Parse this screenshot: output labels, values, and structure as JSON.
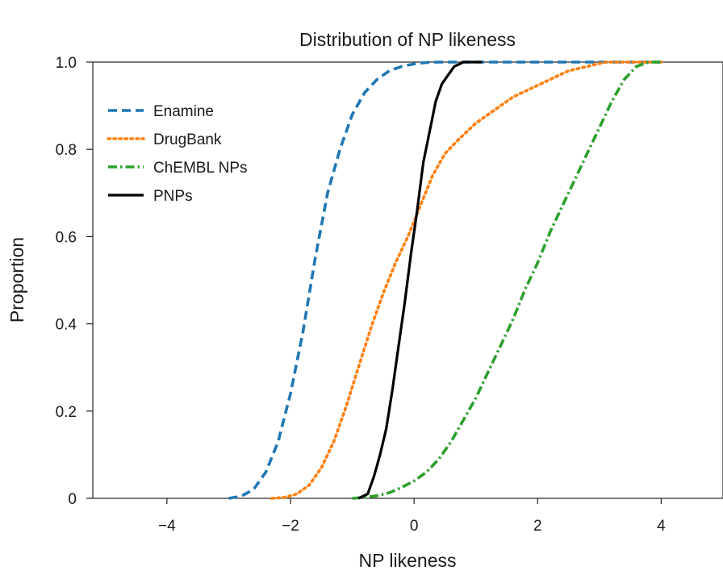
{
  "chart_data": {
    "type": "line",
    "title": "Distribution of NP likeness",
    "xlabel": "NP likeness",
    "ylabel": "Proportion",
    "xlim": [
      -5.2,
      5.0
    ],
    "ylim": [
      0,
      1.0
    ],
    "x_ticks": [
      -4,
      -2,
      0,
      2,
      4
    ],
    "x_tick_labels": [
      "−4",
      "−2",
      "0",
      "2",
      "4"
    ],
    "y_ticks": [
      0,
      0.2,
      0.4,
      0.6,
      0.8,
      1.0
    ],
    "y_tick_labels": [
      "0",
      "0.2",
      "0.4",
      "0.6",
      "0.8",
      "1.0"
    ],
    "grid": false,
    "legend_position": "top-left",
    "series": [
      {
        "name": "Enamine",
        "color": "#1f77b4",
        "style": "dashed",
        "x": [
          -3.0,
          -2.8,
          -2.6,
          -2.4,
          -2.2,
          -2.0,
          -1.8,
          -1.6,
          -1.4,
          -1.2,
          -1.0,
          -0.8,
          -0.6,
          -0.4,
          -0.2,
          0.0,
          0.2,
          0.4,
          0.6,
          4.0
        ],
        "y": [
          0.0,
          0.005,
          0.02,
          0.06,
          0.13,
          0.24,
          0.38,
          0.55,
          0.7,
          0.8,
          0.88,
          0.93,
          0.96,
          0.98,
          0.99,
          0.996,
          0.999,
          1.0,
          1.0,
          1.0
        ]
      },
      {
        "name": "DrugBank",
        "color": "#ff7f0e",
        "style": "dotted",
        "x": [
          -2.3,
          -2.1,
          -1.9,
          -1.7,
          -1.5,
          -1.3,
          -1.1,
          -0.9,
          -0.7,
          -0.5,
          -0.3,
          -0.1,
          0.1,
          0.3,
          0.5,
          0.7,
          1.0,
          1.3,
          1.6,
          1.9,
          2.2,
          2.5,
          2.8,
          3.1,
          3.5,
          4.0
        ],
        "y": [
          0.0,
          0.002,
          0.01,
          0.03,
          0.07,
          0.13,
          0.21,
          0.3,
          0.39,
          0.47,
          0.54,
          0.6,
          0.67,
          0.74,
          0.79,
          0.82,
          0.86,
          0.89,
          0.92,
          0.94,
          0.96,
          0.98,
          0.99,
          1.0,
          1.0,
          1.0
        ]
      },
      {
        "name": "ChEMBL NPs",
        "color": "#2ca02c",
        "style": "dashdot",
        "x": [
          -1.0,
          -0.8,
          -0.6,
          -0.4,
          -0.2,
          0.0,
          0.2,
          0.4,
          0.6,
          0.8,
          1.0,
          1.2,
          1.4,
          1.6,
          1.8,
          2.0,
          2.2,
          2.4,
          2.6,
          2.8,
          3.0,
          3.2,
          3.4,
          3.6,
          3.8,
          4.0
        ],
        "y": [
          0.0,
          0.002,
          0.006,
          0.013,
          0.025,
          0.04,
          0.06,
          0.09,
          0.13,
          0.18,
          0.23,
          0.29,
          0.35,
          0.41,
          0.48,
          0.54,
          0.61,
          0.67,
          0.73,
          0.79,
          0.85,
          0.91,
          0.96,
          0.99,
          1.0,
          1.0
        ]
      },
      {
        "name": "PNPs",
        "color": "#000000",
        "style": "solid",
        "x": [
          -0.9,
          -0.75,
          -0.65,
          -0.55,
          -0.45,
          -0.35,
          -0.25,
          -0.15,
          -0.05,
          0.05,
          0.15,
          0.25,
          0.35,
          0.45,
          0.55,
          0.65,
          0.8,
          1.1
        ],
        "y": [
          0.0,
          0.01,
          0.05,
          0.1,
          0.16,
          0.25,
          0.35,
          0.45,
          0.56,
          0.66,
          0.77,
          0.84,
          0.91,
          0.95,
          0.97,
          0.99,
          1.0,
          1.0
        ]
      }
    ]
  }
}
